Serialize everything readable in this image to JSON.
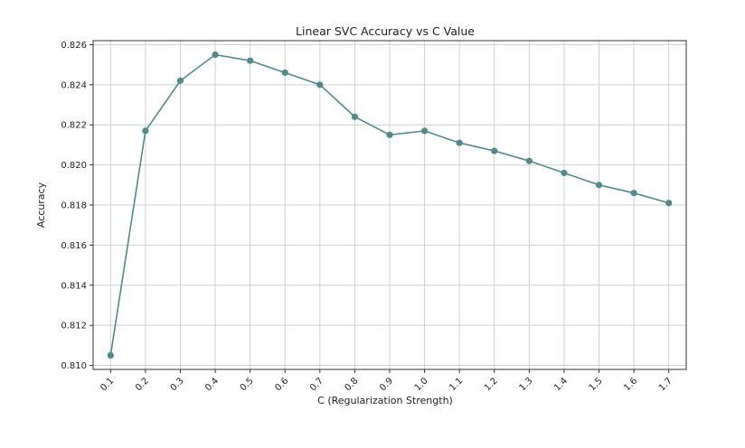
{
  "chart_data": {
    "type": "line",
    "title": "Linear SVC Accuracy vs C Value",
    "xlabel": "C (Regularization Strength)",
    "ylabel": "Accuracy",
    "categories": [
      "0.1",
      "0.2",
      "0.3",
      "0.4",
      "0.5",
      "0.6",
      "0.7",
      "0.8",
      "0.9",
      "1.0",
      "1.1",
      "1.2",
      "1.3",
      "1.4",
      "1.5",
      "1.6",
      "1.7"
    ],
    "series": [
      {
        "values": [
          0.8105,
          0.8217,
          0.8242,
          0.8255,
          0.8252,
          0.8246,
          0.824,
          0.8224,
          0.8215,
          0.8217,
          0.8211,
          0.8207,
          0.8202,
          0.8196,
          0.819,
          0.8186,
          0.8181
        ],
        "color": "#4e8c8c"
      }
    ],
    "yticks": [
      "0.810",
      "0.812",
      "0.814",
      "0.816",
      "0.818",
      "0.820",
      "0.822",
      "0.824",
      "0.826"
    ],
    "ylim": [
      0.8098,
      0.8262
    ],
    "grid": true,
    "marker": "circle",
    "x_tick_rotation": 45
  }
}
